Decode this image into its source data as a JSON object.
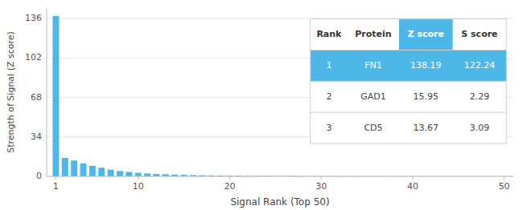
{
  "chart_data": {
    "type": "bar",
    "x_label": "Signal Rank (Top 50)",
    "y_label": "Strength of Signal (Z score)",
    "color": "#4db8e8",
    "x": [
      1,
      2,
      3,
      4,
      5,
      6,
      7,
      8,
      9,
      10,
      11,
      12,
      13,
      14,
      15,
      16,
      17,
      18,
      19,
      20,
      21,
      22,
      23,
      24,
      25,
      26,
      27,
      28,
      29,
      30,
      31,
      32,
      33,
      34,
      35,
      36,
      37,
      38,
      39,
      40,
      41,
      42,
      43,
      44,
      45,
      46,
      47,
      48,
      49,
      50
    ],
    "values": [
      138.19,
      15.95,
      13.67,
      11.2,
      9.1,
      7.4,
      5.8,
      4.6,
      3.8,
      3.1,
      2.5,
      2.1,
      1.8,
      1.5,
      1.3,
      1.1,
      0.95,
      0.82,
      0.72,
      0.63,
      0.56,
      0.5,
      0.44,
      0.39,
      0.35,
      0.31,
      0.28,
      0.25,
      0.22,
      0.2,
      0.18,
      0.16,
      0.14,
      0.13,
      0.11,
      0.1,
      0.09,
      0.08,
      0.07,
      0.07,
      0.06,
      0.06,
      0.05,
      0.05,
      0.05,
      0.04,
      0.04,
      0.04,
      0.03,
      0.03
    ],
    "xlim": [
      0,
      51
    ],
    "xticks": [
      1,
      10,
      20,
      30,
      40,
      50
    ],
    "ylim": [
      0,
      145
    ],
    "yticks": [
      0,
      34,
      68,
      102,
      136
    ],
    "grid": true,
    "table": {
      "headers": [
        "Rank",
        "Protein",
        "Z score",
        "S score"
      ],
      "rows": [
        [
          "1",
          "FN1",
          "138.19",
          "122.24"
        ],
        [
          "2",
          "GAD1",
          "15.95",
          "2.29"
        ],
        [
          "3",
          "CD5",
          "13.67",
          "3.09"
        ]
      ]
    }
  }
}
